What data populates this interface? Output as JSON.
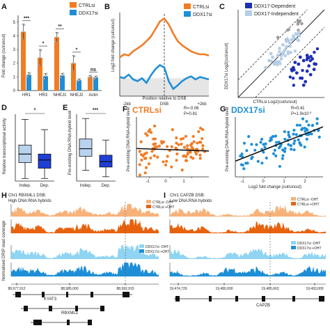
{
  "colors": {
    "ctrl": "#f07c24",
    "ctrl_dark": "#e8620d",
    "ctrl_light": "#f7b27a",
    "ddx": "#1e8fd6",
    "ddx_light": "#8fd4f2",
    "dep": "#1f2fb5",
    "indep": "#b5cde6",
    "gray": "#9a9a9a",
    "box_light": "#b9d3ef",
    "box_dark": "#1f3fd6"
  },
  "panel_labels": {
    "a": "A",
    "b": "B",
    "c": "C",
    "d": "D",
    "e": "E",
    "f": "F",
    "g": "G",
    "h": "H",
    "i": "I"
  },
  "panelA": {
    "legend": [
      "CTRLsi",
      "DDX17si"
    ],
    "ylabel": "Fold change (cut/uncut)",
    "yticks": [
      "0",
      "1",
      "2",
      "3",
      "4",
      "5"
    ],
    "sig": [
      "***",
      "*",
      "**",
      "*",
      "ns"
    ]
  },
  "panelB": {
    "legend": [
      "CTRLsi",
      "DDX17si"
    ],
    "ylabel": "Log2 fold change (cut/uncut)",
    "xlabel": "Position relative to DSB",
    "xticks": [
      "-2kb",
      "DSB",
      "+2kb"
    ]
  },
  "panelC": {
    "legend": [
      "DDX17-Dependent",
      "DDX17-Independent"
    ],
    "ylabel": "DDX17si Log2(cut/uncut)",
    "xlabel": "CTRLsi Log2(cut/uncut)"
  },
  "panelD": {
    "ylabel": "Relative transcriptional activity",
    "categories": [
      "Indep.",
      "Dep."
    ],
    "sig": "*"
  },
  "panelE": {
    "ylabel": "Pre-existing DNA:RNA-hybrid level",
    "categories": [
      "Indep.",
      "Dep."
    ],
    "sig": "***"
  },
  "panelF": {
    "title": "CTRLsi",
    "stat_r": "R=-0.06",
    "stat_p": "P=0.81",
    "ylabel": "Pre-existing DNA:RNA-hybrid level",
    "xticks": [
      "-1",
      "0",
      "1"
    ]
  },
  "panelG": {
    "title": "DDX17si",
    "stat_r": "R=0.41",
    "stat_p": "P=1.9x10",
    "stat_p_exp": "-5",
    "ylabel": "Pre-existing DNA:RNA-hybrid level",
    "xlabel": "Log2 fold change (cut/uncut)",
    "xticks": [
      "-1",
      "0",
      "1",
      "2"
    ]
  },
  "panelH": {
    "title_line1": "Chr1 RBXML1 DSB:",
    "title_line2": "High DNA:RNA hybrids",
    "ylabel": "Normalised DRIP read coverage",
    "track_labels": [
      "CTRLsi -OHT",
      "CTRLsi +OHT",
      "DDX17si -OHT",
      "DDX17si +OHT"
    ],
    "coords": [
      "88,977,912",
      "88,985,000",
      "88,992,915"
    ],
    "genes": [
      "KYAT3",
      "RBXML1"
    ]
  },
  "panelI": {
    "title_line1": "Chr1 CAPZB DSB:",
    "title_line2": "Low DNA:RNA hybrids",
    "track_labels": [
      "CTRLsi -OHT",
      "CTRLsi +OHT",
      "DDX17si -OHT",
      "DDX17si +OHT"
    ],
    "coords": [
      "19,474,729",
      "19,480,000",
      "19,485,663",
      "19,493,000"
    ],
    "genes": [
      "CAPZB"
    ]
  },
  "chart_data": [
    {
      "panel": "A",
      "type": "bar",
      "categories": [
        "HR1",
        "HR3",
        "NHEJ1",
        "NHEJ2",
        "Actin"
      ],
      "series": [
        {
          "name": "CTRLsi",
          "values": [
            4.3,
            2.4,
            3.9,
            2.0,
            1.0
          ],
          "errors": [
            0.55,
            0.6,
            0.35,
            0.55,
            0.1
          ]
        },
        {
          "name": "DDX17si",
          "values": [
            1.15,
            1.05,
            1.1,
            0.75,
            0.95
          ],
          "errors": [
            0.15,
            0.2,
            0.15,
            0.1,
            0.1
          ]
        }
      ],
      "ylim": [
        0,
        5.5
      ]
    },
    {
      "panel": "B",
      "type": "line",
      "x": [
        -2000,
        -1800,
        -1600,
        -1400,
        -1200,
        -1000,
        -800,
        -600,
        -400,
        -200,
        0,
        200,
        400,
        600,
        800,
        1000,
        1200,
        1400,
        1600,
        1800,
        2000
      ],
      "series": [
        {
          "name": "CTRLsi",
          "values": [
            0.35,
            0.4,
            0.38,
            0.45,
            0.5,
            0.55,
            0.62,
            0.7,
            0.82,
            0.95,
            1.0,
            0.9,
            0.75,
            0.62,
            0.55,
            0.5,
            0.45,
            0.42,
            0.4,
            0.4,
            0.38
          ]
        },
        {
          "name": "DDX17si",
          "values": [
            0.02,
            0.0,
            0.06,
            -0.02,
            -0.05,
            0.0,
            -0.08,
            0.05,
            0.15,
            0.22,
            0.18,
            -0.05,
            -0.18,
            -0.12,
            -0.05,
            0.0,
            0.03,
            -0.02,
            0.02,
            0.0,
            -0.02
          ]
        }
      ]
    },
    {
      "panel": "C",
      "type": "scatter",
      "series": [
        {
          "name": "DDX17-Dependent",
          "x": [
            1.2,
            1.5,
            1.8,
            2.0,
            2.3,
            1.4,
            1.7,
            2.1,
            2.4,
            1.9,
            1.3,
            2.2,
            1.6,
            2.5,
            1.1,
            2.0,
            1.8
          ],
          "y": [
            -0.3,
            -0.1,
            0.1,
            -0.5,
            0.2,
            -0.6,
            -0.9,
            -0.2,
            -0.4,
            -1.1,
            0.0,
            -0.7,
            0.3,
            -0.1,
            -0.4,
            0.4,
            -1.3
          ]
        },
        {
          "name": "DDX17-Independent",
          "x": [
            -0.4,
            -0.2,
            0.0,
            0.2,
            0.4,
            0.6,
            0.8,
            1.0,
            0.3,
            0.5,
            0.7,
            0.9,
            1.1,
            -0.1,
            0.1,
            0.6,
            0.8,
            1.2,
            0.4,
            1.4
          ],
          "y": [
            -0.3,
            0.1,
            0.3,
            0.0,
            0.6,
            0.5,
            0.9,
            1.1,
            0.4,
            0.2,
            0.7,
            0.6,
            1.3,
            0.5,
            -0.1,
            1.0,
            1.2,
            1.5,
            0.8,
            1.6
          ]
        }
      ]
    },
    {
      "panel": "D",
      "type": "box",
      "categories": [
        "Indep.",
        "Dep."
      ],
      "boxes": [
        {
          "min": 0.1,
          "q1": 0.72,
          "median": 1.05,
          "q3": 1.4,
          "max": 2.4
        },
        {
          "min": 0.1,
          "q1": 0.5,
          "median": 0.82,
          "q3": 1.05,
          "max": 2.0
        }
      ]
    },
    {
      "panel": "E",
      "type": "box",
      "categories": [
        "Indep.",
        "Dep."
      ],
      "boxes": [
        {
          "min": 1.1,
          "q1": 1.75,
          "median": 2.1,
          "q3": 2.55,
          "max": 3.5
        },
        {
          "min": 0.8,
          "q1": 1.25,
          "median": 1.5,
          "q3": 1.8,
          "max": 2.5
        }
      ]
    },
    {
      "panel": "F",
      "type": "scatter",
      "title": "CTRLsi",
      "regression": {
        "slope": -0.04,
        "intercept": 2.0
      }
    },
    {
      "panel": "G",
      "type": "scatter",
      "title": "DDX17si",
      "regression": {
        "slope": 0.45,
        "intercept": 2.0
      }
    }
  ]
}
